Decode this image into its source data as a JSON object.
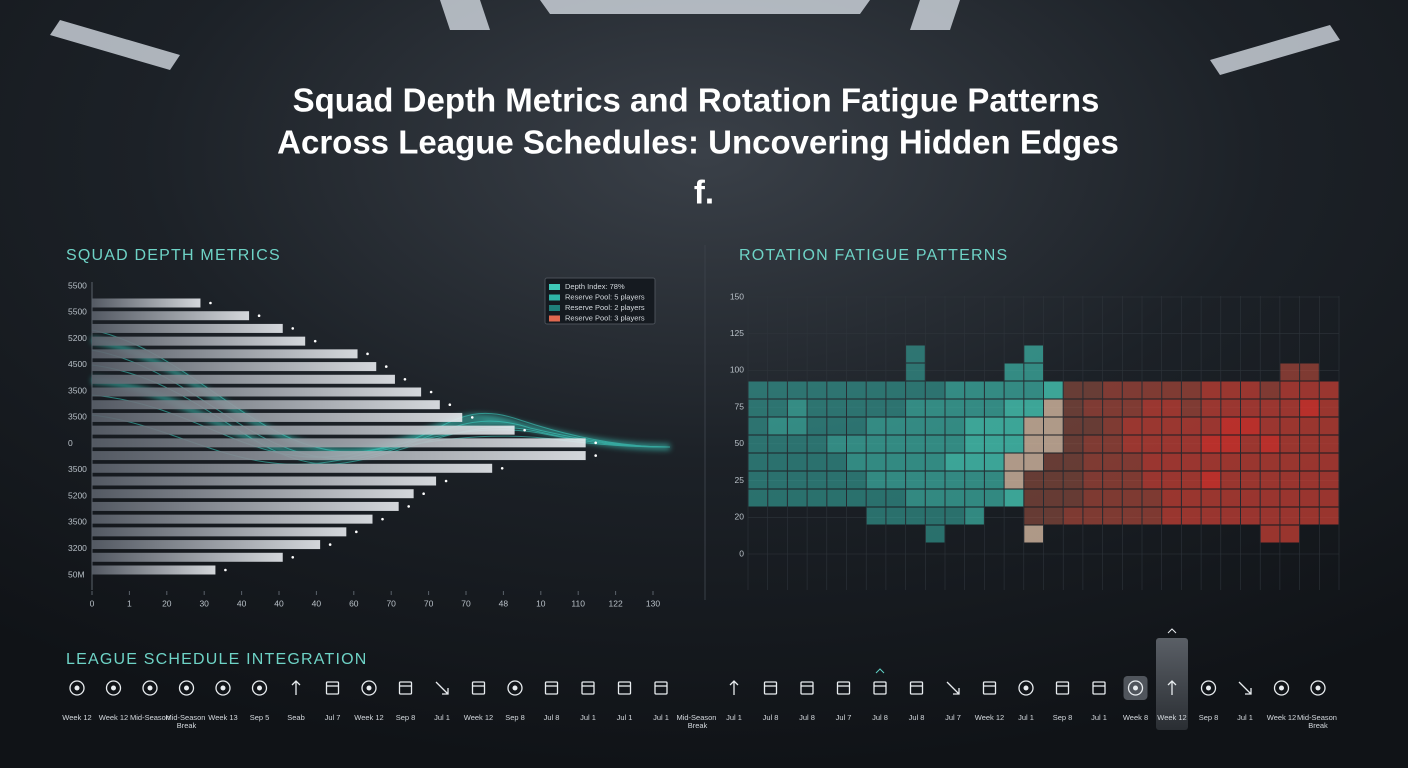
{
  "header": {
    "title_lines": [
      "Squad Depth Metrics and Rotation Fatigue Patterns",
      "Across League Schedules: Uncovering Hidden Edges"
    ],
    "mark": "f."
  },
  "chart_data": [
    {
      "type": "hbar",
      "title": "SQUAD DEPTH METRICS",
      "values": [
        2.9,
        4.2,
        5.1,
        5.7,
        7.1,
        7.6,
        8.1,
        8.8,
        9.3,
        9.9,
        11.3,
        13.2,
        13.2,
        10.7,
        9.2,
        8.6,
        8.2,
        7.5,
        6.8,
        6.1,
        5.1,
        3.3
      ],
      "color": "#c9ced6",
      "ylabels": [
        "5500",
        "5500",
        "5200",
        "4500",
        "3500",
        "3500",
        "0",
        "3500",
        "5200",
        "3500",
        "3200",
        "50M"
      ],
      "xlim": [
        0,
        15
      ],
      "xticks": [
        0,
        {
          "value": 1,
          "label": "1"
        },
        {
          "value": 2,
          "label": "20"
        },
        {
          "value": 3,
          "label": "30"
        },
        {
          "value": 4,
          "label": "40"
        },
        {
          "value": 5,
          "label": "40"
        },
        {
          "value": 6,
          "label": "40"
        },
        {
          "value": 7,
          "label": "60"
        },
        {
          "value": 8,
          "label": "70"
        },
        {
          "value": 9,
          "label": "70"
        },
        {
          "value": 10,
          "label": "70"
        },
        {
          "value": 11,
          "label": "48"
        },
        {
          "value": 12,
          "label": "10"
        },
        {
          "value": 13,
          "label": "110"
        },
        {
          "value": 14,
          "label": "122"
        },
        {
          "value": 15,
          "label": "130"
        }
      ],
      "legend": [
        {
          "name": "Depth Index: 78%",
          "color": "#3fc9b8"
        },
        {
          "name": "Reserve Pool: 5 players",
          "color": "#2fb3a6"
        },
        {
          "name": "Reserve Pool: 2 players",
          "color": "#1f7f7a"
        },
        {
          "name": "Reserve Pool: 3 players",
          "color": "#e0684f"
        }
      ]
    },
    {
      "type": "heatmap",
      "title": "ROTATION FATIGUE PATTERNS",
      "ylabels": [
        "150",
        "125",
        "100",
        "75",
        "50",
        "25",
        "20",
        "0"
      ],
      "values": [
        [
          null,
          null,
          null,
          null,
          null,
          null,
          null,
          null,
          2,
          null,
          null,
          null,
          null,
          null,
          3,
          null,
          null,
          null,
          null,
          null,
          null,
          null,
          null,
          null,
          null,
          null,
          null,
          null,
          null,
          null
        ],
        [
          null,
          null,
          null,
          null,
          null,
          null,
          null,
          null,
          2,
          null,
          null,
          null,
          null,
          3,
          3,
          null,
          null,
          null,
          null,
          null,
          null,
          null,
          null,
          null,
          null,
          null,
          null,
          7,
          7,
          null
        ],
        [
          2,
          2,
          2,
          2,
          2,
          2,
          2,
          2,
          2,
          2,
          3,
          3,
          3,
          3,
          3,
          4,
          6,
          6,
          7,
          7,
          7,
          7,
          7,
          8,
          8,
          8,
          7,
          8,
          8,
          8
        ],
        [
          2,
          2,
          3,
          2,
          2,
          2,
          2,
          2,
          3,
          3,
          3,
          3,
          3,
          4,
          4,
          5,
          6,
          7,
          7,
          7,
          8,
          8,
          7,
          8,
          8,
          8,
          8,
          8,
          9,
          8
        ],
        [
          2,
          3,
          3,
          2,
          2,
          2,
          3,
          3,
          3,
          3,
          3,
          4,
          4,
          4,
          5,
          5,
          6,
          6,
          7,
          8,
          8,
          8,
          8,
          8,
          9,
          9,
          8,
          8,
          8,
          8
        ],
        [
          2,
          2,
          2,
          2,
          3,
          3,
          3,
          3,
          3,
          3,
          3,
          4,
          4,
          4,
          5,
          5,
          6,
          7,
          7,
          8,
          8,
          8,
          8,
          9,
          9,
          8,
          9,
          8,
          8,
          8
        ],
        [
          2,
          2,
          2,
          2,
          2,
          3,
          3,
          3,
          3,
          3,
          4,
          4,
          4,
          5,
          5,
          6,
          6,
          7,
          7,
          7,
          8,
          8,
          8,
          8,
          8,
          8,
          8,
          8,
          8,
          8
        ],
        [
          2,
          2,
          2,
          2,
          2,
          2,
          3,
          3,
          3,
          3,
          3,
          3,
          3,
          5,
          6,
          6,
          6,
          7,
          7,
          7,
          8,
          8,
          8,
          9,
          8,
          8,
          8,
          8,
          8,
          8
        ],
        [
          2,
          2,
          2,
          2,
          2,
          2,
          2,
          2,
          3,
          3,
          3,
          3,
          3,
          4,
          6,
          6,
          6,
          7,
          7,
          7,
          7,
          8,
          8,
          8,
          8,
          8,
          8,
          8,
          8,
          8
        ],
        [
          null,
          null,
          null,
          null,
          null,
          null,
          2,
          2,
          2,
          2,
          2,
          3,
          null,
          null,
          6,
          6,
          7,
          7,
          7,
          7,
          7,
          8,
          8,
          8,
          8,
          8,
          8,
          8,
          8,
          8
        ],
        [
          null,
          null,
          null,
          null,
          null,
          null,
          null,
          null,
          null,
          2,
          null,
          null,
          null,
          null,
          5,
          null,
          null,
          null,
          null,
          null,
          null,
          null,
          null,
          null,
          null,
          null,
          8,
          8,
          null,
          null
        ]
      ]
    }
  ],
  "schedule": {
    "title": "LEAGUE SCHEDULE INTEGRATION",
    "items": [
      {
        "icon": "ball",
        "label": "Week 12"
      },
      {
        "icon": "ball",
        "label": "Week 12"
      },
      {
        "icon": "ball",
        "label": "Mid-Season"
      },
      {
        "icon": "ball",
        "label": "Mid-Season Break"
      },
      {
        "icon": "ball",
        "label": "Week 13"
      },
      {
        "icon": "ball",
        "label": "Sep 5"
      },
      {
        "icon": "up",
        "label": "Seab"
      },
      {
        "icon": "cal",
        "label": "Jul 7"
      },
      {
        "icon": "ball",
        "label": "Week 12"
      },
      {
        "icon": "cal",
        "label": "Sep 8"
      },
      {
        "icon": "diag",
        "label": "Jul 1"
      },
      {
        "icon": "cal",
        "label": "Week 12"
      },
      {
        "icon": "ball",
        "label": "Sep 8"
      },
      {
        "icon": "cal",
        "label": "Jul 8"
      },
      {
        "icon": "cal",
        "label": "Jul 1"
      },
      {
        "icon": "cal",
        "label": "Jul 1"
      },
      {
        "icon": "cal",
        "label": "Jul 1"
      },
      {
        "icon": "none",
        "label": "Mid-Season Break"
      },
      {
        "icon": "up",
        "label": "Jul 1"
      },
      {
        "icon": "cal",
        "label": "Jul 8"
      },
      {
        "icon": "cal",
        "label": "Jul 8"
      },
      {
        "icon": "cal",
        "label": "Jul 7"
      },
      {
        "icon": "cal",
        "label": "Jul 8",
        "state": "marked"
      },
      {
        "icon": "cal",
        "label": "Jul 8"
      },
      {
        "icon": "diag",
        "label": "Jul 7"
      },
      {
        "icon": "cal",
        "label": "Week 12"
      },
      {
        "icon": "ball",
        "label": "Jul 1"
      },
      {
        "icon": "cal",
        "label": "Sep 8"
      },
      {
        "icon": "cal",
        "label": "Jul 1"
      },
      {
        "icon": "ball",
        "label": "Week 8",
        "state": "hover"
      },
      {
        "icon": "up",
        "label": "Week 12",
        "state": "active"
      },
      {
        "icon": "ball",
        "label": "Sep 8"
      },
      {
        "icon": "diag",
        "label": "Jul 1"
      },
      {
        "icon": "ball",
        "label": "Week 12"
      },
      {
        "icon": "ball",
        "label": "Mid-Season Break"
      }
    ]
  }
}
